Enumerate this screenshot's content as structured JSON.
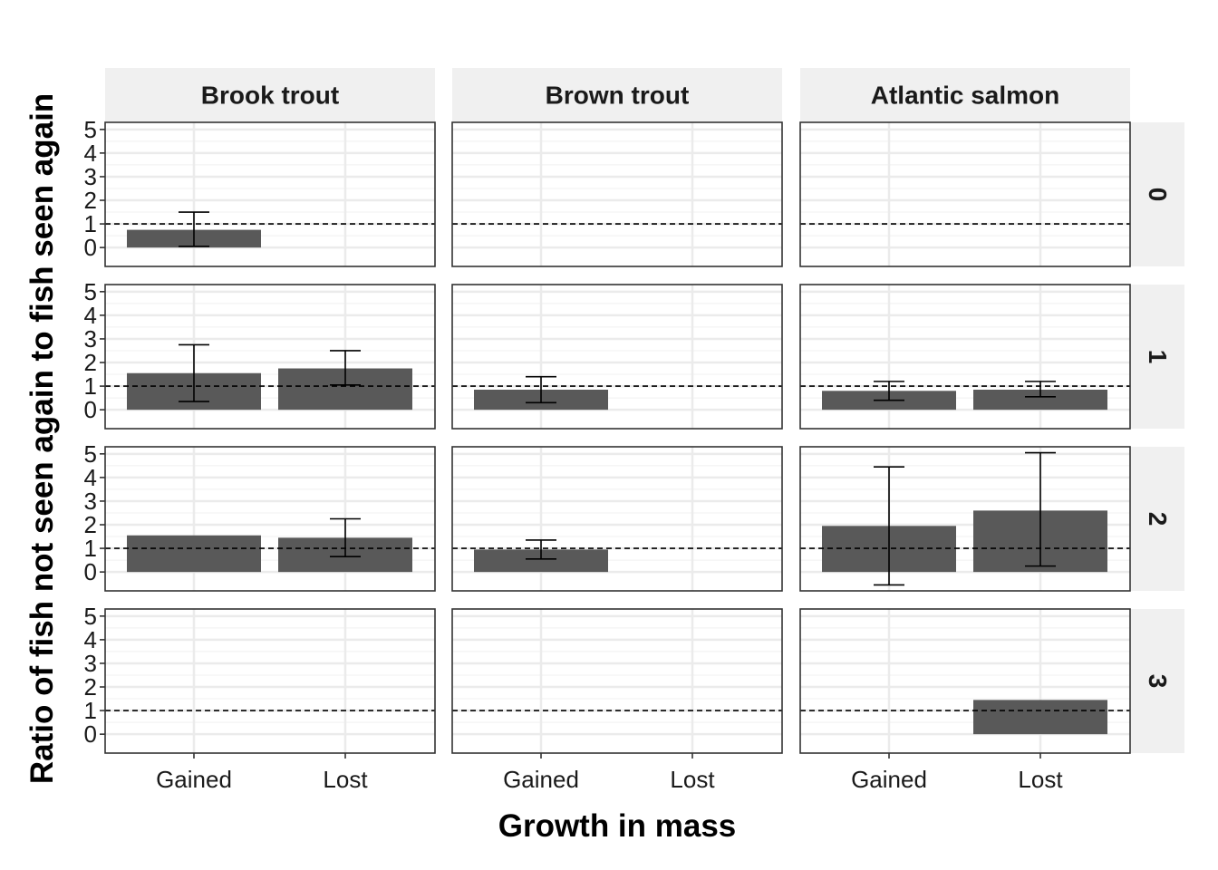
{
  "chart_data": {
    "type": "bar",
    "xlabel": "Growth in mass",
    "ylabel": "Ratio of fish not seen again to fish seen again",
    "categories": [
      "Gained",
      "Lost"
    ],
    "column_facets": [
      "Brook trout",
      "Brown trout",
      "Atlantic salmon"
    ],
    "row_facets": [
      "0",
      "1",
      "2",
      "3"
    ],
    "ylim": [
      -0.8,
      5.3
    ],
    "yticks": [
      "0",
      "1",
      "2",
      "3",
      "4",
      "5"
    ],
    "reference_line": 1,
    "panels": [
      {
        "column": "Brook trout",
        "row": "0",
        "bars": [
          {
            "category": "Gained",
            "value": 0.75,
            "lower": 0.05,
            "upper": 1.5
          }
        ]
      },
      {
        "column": "Brown trout",
        "row": "0",
        "bars": []
      },
      {
        "column": "Atlantic salmon",
        "row": "0",
        "bars": []
      },
      {
        "column": "Brook trout",
        "row": "1",
        "bars": [
          {
            "category": "Gained",
            "value": 1.55,
            "lower": 0.35,
            "upper": 2.75
          },
          {
            "category": "Lost",
            "value": 1.75,
            "lower": 1.05,
            "upper": 2.5
          }
        ]
      },
      {
        "column": "Brown trout",
        "row": "1",
        "bars": [
          {
            "category": "Gained",
            "value": 0.85,
            "lower": 0.3,
            "upper": 1.4
          }
        ]
      },
      {
        "column": "Atlantic salmon",
        "row": "1",
        "bars": [
          {
            "category": "Gained",
            "value": 0.8,
            "lower": 0.4,
            "upper": 1.2
          },
          {
            "category": "Lost",
            "value": 0.85,
            "lower": 0.55,
            "upper": 1.2
          }
        ]
      },
      {
        "column": "Brook trout",
        "row": "2",
        "bars": [
          {
            "category": "Gained",
            "value": 1.55,
            "lower": null,
            "upper": null
          },
          {
            "category": "Lost",
            "value": 1.45,
            "lower": 0.65,
            "upper": 2.25
          }
        ]
      },
      {
        "column": "Brown trout",
        "row": "2",
        "bars": [
          {
            "category": "Gained",
            "value": 0.95,
            "lower": 0.55,
            "upper": 1.35
          }
        ]
      },
      {
        "column": "Atlantic salmon",
        "row": "2",
        "bars": [
          {
            "category": "Gained",
            "value": 1.95,
            "lower": -0.55,
            "upper": 4.45
          },
          {
            "category": "Lost",
            "value": 2.6,
            "lower": 0.25,
            "upper": 5.05
          }
        ]
      },
      {
        "column": "Brook trout",
        "row": "3",
        "bars": []
      },
      {
        "column": "Brown trout",
        "row": "3",
        "bars": []
      },
      {
        "column": "Atlantic salmon",
        "row": "3",
        "bars": [
          {
            "category": "Lost",
            "value": 1.45,
            "lower": null,
            "upper": null
          }
        ]
      }
    ]
  }
}
